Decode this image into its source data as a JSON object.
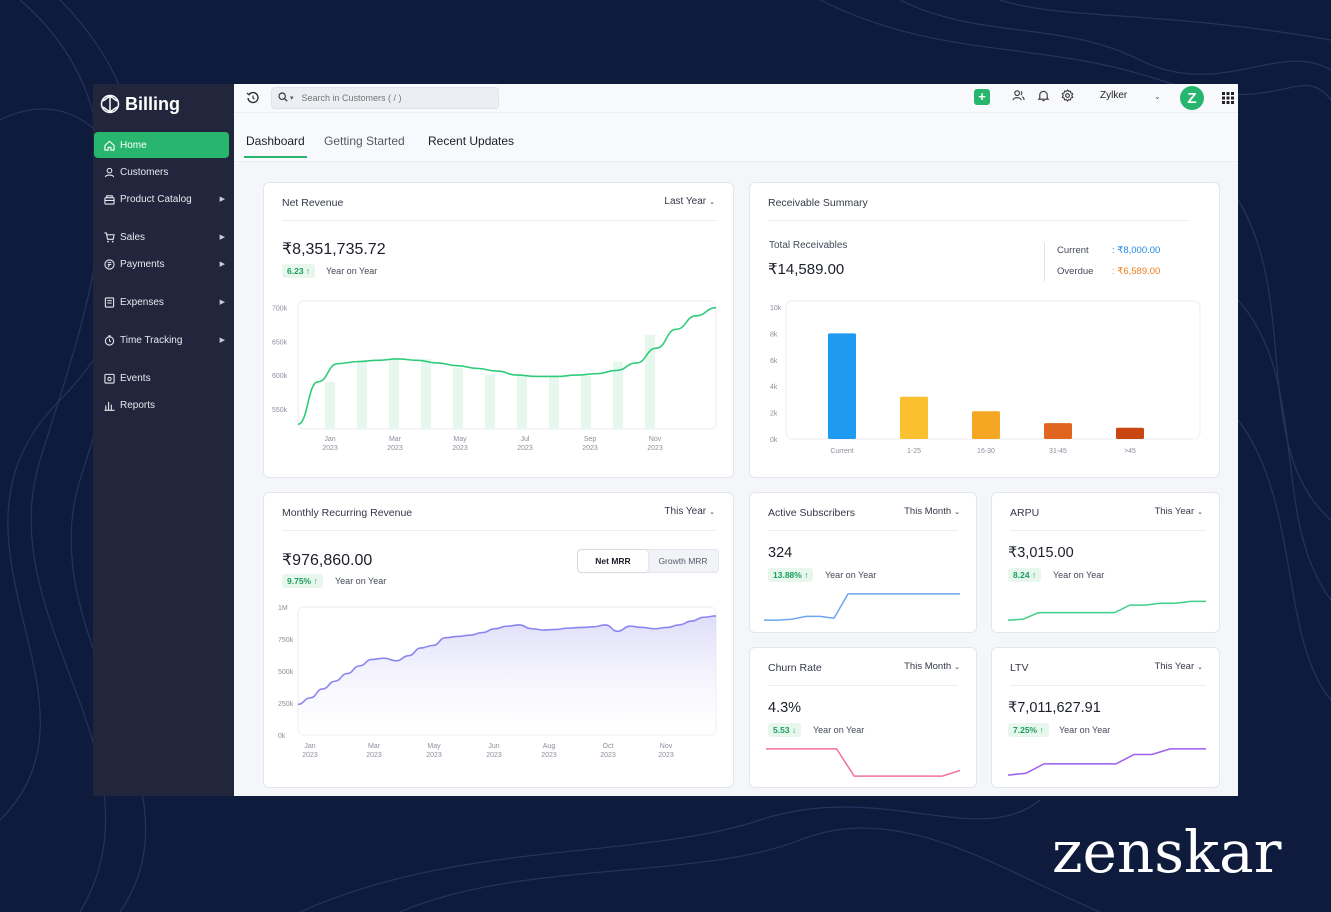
{
  "brand": {
    "wordmark": "zenskar"
  },
  "sidebar": {
    "title": "Billing",
    "items": [
      {
        "label": "Home",
        "icon": "home-icon",
        "active": true
      },
      {
        "label": "Customers",
        "icon": "user-icon"
      },
      {
        "label": "Product Catalog",
        "icon": "box-icon",
        "has_submenu": true
      },
      {
        "label": "Sales",
        "icon": "cart-icon",
        "has_submenu": true
      },
      {
        "label": "Payments",
        "icon": "payment-icon",
        "has_submenu": true
      },
      {
        "label": "Expenses",
        "icon": "receipt-icon",
        "has_submenu": true
      },
      {
        "label": "Time Tracking",
        "icon": "clock-icon",
        "has_submenu": true
      },
      {
        "label": "Events",
        "icon": "calendar-icon"
      },
      {
        "label": "Reports",
        "icon": "bar-chart-icon"
      }
    ]
  },
  "topbar": {
    "search_placeholder": "Search in Customers ( / )",
    "org_name": "Zylker",
    "avatar_letter": "Z",
    "accent": "#28b66e"
  },
  "tabs": [
    {
      "label": "Dashboard",
      "active": true
    },
    {
      "label": "Getting Started"
    },
    {
      "label": "Recent Updates"
    }
  ],
  "net_revenue": {
    "title": "Net Revenue",
    "period": "Last Year",
    "value": "₹8,351,735.72",
    "change": "6.23",
    "direction": "up",
    "change_label": "Year on Year",
    "chart_data": {
      "type": "line",
      "y_ticks": [
        "700k",
        "650k",
        "600k",
        "550k"
      ],
      "ylim": [
        520,
        710
      ],
      "x_labels": [
        [
          "Jan",
          "2023"
        ],
        [
          "Mar",
          "2023"
        ],
        [
          "May",
          "2023"
        ],
        [
          "Jul",
          "2023"
        ],
        [
          "Sep",
          "2023"
        ],
        [
          "Nov",
          "2023"
        ]
      ],
      "line": [
        527,
        590,
        617,
        620,
        622,
        624,
        622,
        618,
        614,
        610,
        606,
        600,
        598,
        598,
        600,
        602,
        607,
        618,
        640,
        668,
        688,
        700
      ],
      "bars": [
        590,
        622,
        624,
        624,
        611,
        600,
        599,
        599,
        599,
        620,
        660
      ]
    }
  },
  "receivables": {
    "title": "Receivable Summary",
    "total_label": "Total Receivables",
    "total": "₹14,589.00",
    "current_label": "Current",
    "current_value": ": ₹8,000.00",
    "overdue_label": "Overdue",
    "overdue_value": ": ₹6,589.00",
    "chart_data": {
      "type": "bar",
      "y_ticks": [
        "10k",
        "8k",
        "6k",
        "4k",
        "2k",
        "0k"
      ],
      "ylim": [
        0,
        10000
      ],
      "categories": [
        "Current",
        "1-25",
        "16-30",
        "31-45",
        ">45"
      ],
      "values": [
        8000,
        3200,
        2100,
        1200,
        850
      ],
      "colors": [
        "#1e9bf0",
        "#fbc02d",
        "#f5a623",
        "#e0651e",
        "#c8460f"
      ]
    }
  },
  "mrr": {
    "title": "Monthly Recurring Revenue",
    "period": "This Year",
    "value": "₹976,860.00",
    "change": "9.75%",
    "direction": "up",
    "change_label": "Year on Year",
    "toggle": [
      "Net MRR",
      "Growth MRR"
    ],
    "chart_data": {
      "type": "area",
      "y_ticks": [
        "1M",
        "750k",
        "500k",
        "250k",
        "0k"
      ],
      "ylim": [
        0,
        1000
      ],
      "x_labels": [
        [
          "Jan",
          "2023"
        ],
        [
          "Mar",
          "2023"
        ],
        [
          "May",
          "2023"
        ],
        [
          "Jun",
          "2023"
        ],
        [
          "Aug",
          "2023"
        ],
        [
          "Oct",
          "2023"
        ],
        [
          "Nov",
          "2023"
        ]
      ],
      "values": [
        240,
        290,
        360,
        420,
        480,
        540,
        590,
        600,
        580,
        620,
        680,
        700,
        760,
        770,
        780,
        800,
        830,
        850,
        860,
        830,
        820,
        825,
        835,
        840,
        845,
        860,
        810,
        850,
        840,
        830,
        840,
        860,
        890,
        920,
        930
      ]
    }
  },
  "active_subscribers": {
    "title": "Active Subscribers",
    "period": "This Month",
    "value": "324",
    "change": "13.88%",
    "direction": "up",
    "change_label": "Year on Year",
    "line_color": "#6aa6f0",
    "spark": [
      2,
      2,
      3,
      6,
      6,
      4,
      30,
      30,
      30,
      30,
      30,
      30,
      30,
      30,
      30
    ]
  },
  "arpu": {
    "title": "ARPU",
    "period": "This Year",
    "value": "₹3,015.00",
    "change": "8.24",
    "direction": "up",
    "change_label": "Year on Year",
    "line_color": "#3fcf87",
    "spark": [
      2,
      3,
      10,
      10,
      10,
      10,
      10,
      10,
      18,
      18,
      20,
      20,
      22,
      22
    ]
  },
  "churn": {
    "title": "Churn Rate",
    "period": "This Month",
    "value": "4.3%",
    "change": "5.53",
    "direction": "down",
    "change_label": "Year on Year",
    "line_color": "#f0709a",
    "spark": [
      30,
      30,
      30,
      30,
      30,
      1,
      1,
      1,
      1,
      1,
      1,
      7
    ]
  },
  "ltv": {
    "title": "LTV",
    "period": "This Year",
    "value": "₹7,011,627.91",
    "change": "7.25%",
    "direction": "up",
    "change_label": "Year on Year",
    "line_color": "#9d5cf0",
    "spark": [
      2,
      4,
      14,
      14,
      14,
      14,
      14,
      24,
      24,
      30,
      30,
      30
    ]
  }
}
